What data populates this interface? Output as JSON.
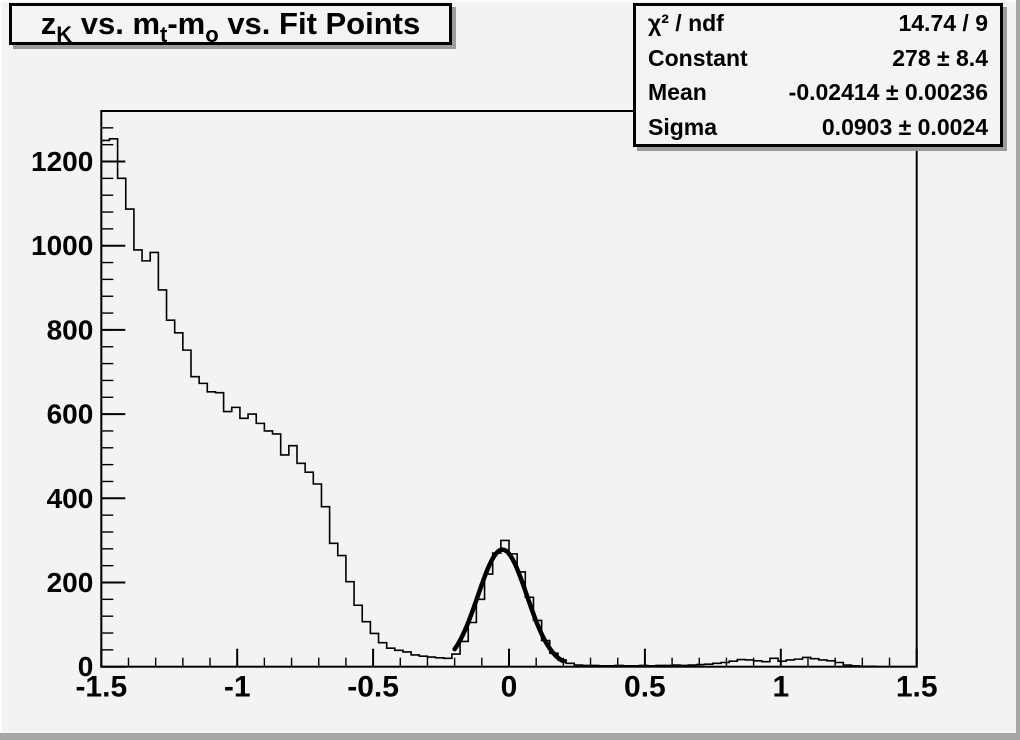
{
  "title": {
    "segments": [
      {
        "text": "z"
      },
      {
        "text": "K",
        "sub": true
      },
      {
        "text": " vs. m"
      },
      {
        "text": "t",
        "sub": true
      },
      {
        "text": "-m"
      },
      {
        "text": "o",
        "sub": true
      },
      {
        "text": " vs. Fit Points"
      }
    ]
  },
  "stats": {
    "rows": [
      {
        "label": "χ² / ndf",
        "value": "14.74 / 9"
      },
      {
        "label": "Constant",
        "value": "278 ± 8.4"
      },
      {
        "label": "Mean",
        "value": "-0.02414 ± 0.00236"
      },
      {
        "label": "Sigma",
        "value": "0.0903 ± 0.0024"
      }
    ]
  },
  "chart_data": {
    "type": "bar",
    "title": "z_K vs. m_t-m_o vs. Fit Points",
    "xlabel": "",
    "ylabel": "",
    "grid": false,
    "legend": false,
    "x_axis": {
      "min": -1.5,
      "max": 1.5,
      "major_ticks": [
        -1.5,
        -1,
        -0.5,
        0,
        0.5,
        1,
        1.5
      ],
      "tick_labels": [
        "-1.5",
        "-1",
        "-0.5",
        "0",
        "0.5",
        "1",
        "1.5"
      ],
      "minor_step": 0.1
    },
    "y_axis": {
      "min": 0,
      "max": 1320,
      "major_ticks": [
        0,
        200,
        400,
        600,
        800,
        1000,
        1200
      ],
      "tick_labels": [
        "0",
        "200",
        "400",
        "600",
        "800",
        "1000",
        "1200"
      ],
      "minor_step": 40
    },
    "histogram": {
      "bin_start": -1.5,
      "bin_width": 0.03,
      "values": [
        1250,
        1254,
        1160,
        1087,
        990,
        964,
        984,
        895,
        823,
        793,
        752,
        689,
        673,
        653,
        651,
        606,
        616,
        590,
        600,
        578,
        560,
        553,
        503,
        525,
        483,
        462,
        434,
        380,
        293,
        264,
        202,
        146,
        107,
        79,
        57,
        44,
        39,
        35,
        28,
        25,
        23,
        21,
        20,
        30,
        60,
        105,
        160,
        220,
        270,
        300,
        268,
        225,
        165,
        110,
        62,
        32,
        16,
        8,
        4,
        3,
        3,
        2,
        2,
        3,
        2,
        2,
        3,
        2,
        3,
        3,
        4,
        3,
        4,
        5,
        6,
        8,
        10,
        13,
        17,
        16,
        14,
        12,
        20,
        13,
        16,
        18,
        22,
        19,
        16,
        14,
        10,
        4,
        2,
        1,
        1,
        0,
        0,
        0,
        0,
        0
      ]
    },
    "fit": {
      "type": "gaussian",
      "constant": 278,
      "mean": -0.02414,
      "sigma": 0.0903,
      "chi2": 14.74,
      "ndf": 9,
      "draw_range": [
        -0.2,
        0.2
      ]
    }
  },
  "colors": {
    "canvas_bg": "#f2f3f2",
    "pave_bg": "#f4f4f4",
    "line": "#000000",
    "shadow": "#9c9c9c",
    "border_dark": "#a6a6a6",
    "border_light": "#fcfcfc"
  }
}
